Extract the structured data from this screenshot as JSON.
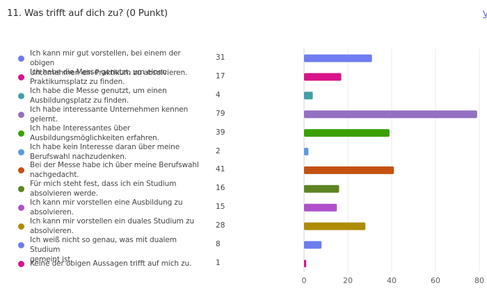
{
  "header": {
    "title": "11. Was trifft auf dich zu? (0 Punkt)",
    "more_link": "V"
  },
  "chart_data": {
    "type": "bar",
    "orientation": "horizontal",
    "title": "11. Was trifft auf dich zu? (0 Punkt)",
    "xlabel": "",
    "ylabel": "",
    "xlim": [
      0,
      80
    ],
    "xticks": [
      0,
      20,
      40,
      60,
      80
    ],
    "grid": true,
    "legend": "left",
    "categories": [
      "Ich kann mir gut vorstellen, bei einem der obigen Unternehmen ein Praktikum zu absolvieren.",
      "Ich habe die Messe genutzt, um einen Praktikumsplatz zu finden.",
      "Ich habe die Messe genutzt, um einen Ausbildungsplatz zu finden.",
      "Ich habe interessante Unternehmen kennen gelernt.",
      "Ich habe Interessantes über Ausbildungsmöglichkeiten erfahren.",
      "Ich habe kein Interesse daran über meine Berufswahl nachzudenken.",
      "Bei der Messe habe ich über meine Berufswahl nachgedacht.",
      "Für mich steht fest, dass ich ein Studium absolvieren werde.",
      "Ich kann mir vorstellen eine Ausbildung zu absolvieren.",
      "Ich kann mir vorstellen ein duales Studium zu absolvieren.",
      "Ich weiß nicht so genau, was mit dualem Studium gemeint ist.",
      "Keine der obigen Aussagen trifft auf mich zu."
    ],
    "label_lines": [
      [
        "Ich kann mir gut vorstellen, bei einem der obigen",
        "Unternehmen ein Praktikum zu absolvieren."
      ],
      [
        "Ich habe die Messe genutzt, um einen",
        "Praktikumsplatz zu finden."
      ],
      [
        "Ich habe die Messe genutzt, um einen",
        "Ausbildungsplatz zu finden."
      ],
      [
        "Ich habe interessante Unternehmen kennen",
        "gelernt."
      ],
      [
        "Ich habe Interessantes über",
        "Ausbildungsmöglichkeiten erfahren."
      ],
      [
        "Ich habe kein Interesse daran über meine",
        "Berufswahl nachzudenken."
      ],
      [
        "Bei der Messe habe ich über meine Berufswahl",
        "nachgedacht."
      ],
      [
        "Für mich steht fest, dass ich ein Studium",
        "absolvieren werde."
      ],
      [
        "Ich kann mir vorstellen eine Ausbildung zu",
        "absolvieren."
      ],
      [
        "Ich kann mir vorstellen ein duales Studium zu",
        "absolvieren."
      ],
      [
        "Ich weiß nicht so genau, was mit dualem Studium",
        "gemeint ist."
      ],
      [
        "Keine der obigen Aussagen trifft auf mich zu."
      ]
    ],
    "values": [
      31,
      17,
      4,
      79,
      39,
      2,
      41,
      16,
      15,
      28,
      8,
      1
    ],
    "colors": [
      "#6e7cf0",
      "#d9138a",
      "#41a0a5",
      "#9370c2",
      "#3aa000",
      "#5a9be6",
      "#c4520f",
      "#5e8421",
      "#b14fcb",
      "#ad8c00",
      "#6e7cf0",
      "#d9138a"
    ]
  }
}
